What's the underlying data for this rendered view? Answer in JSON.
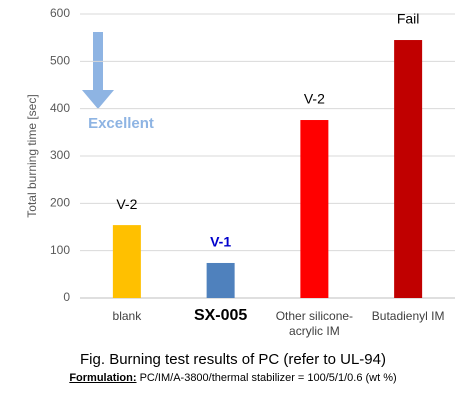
{
  "chart_data": {
    "type": "bar",
    "y_label": "Total burning time [sec]",
    "categories": [
      "blank",
      "SX-005",
      "Other silicone-acrylic IM",
      "Butadienyl IM"
    ],
    "values": [
      154,
      74,
      376,
      545
    ],
    "colors": [
      "#ffc000",
      "#4f81bd",
      "#ff0000",
      "#c00000"
    ],
    "bar_labels": [
      "V-2",
      "V-1",
      "V-2",
      "Fail"
    ],
    "annotation": "Excellent",
    "ylim": [
      0,
      600
    ],
    "yticks": [
      0,
      100,
      200,
      300,
      400,
      500,
      600
    ],
    "grid": true
  },
  "caption": {
    "title": "Fig. Burning test results of PC (refer to UL-94)",
    "formulation_label": "Formulation:",
    "formulation_text": " PC/IM/A-3800/thermal stabilizer = 100/5/1/0.6 (wt %)"
  }
}
